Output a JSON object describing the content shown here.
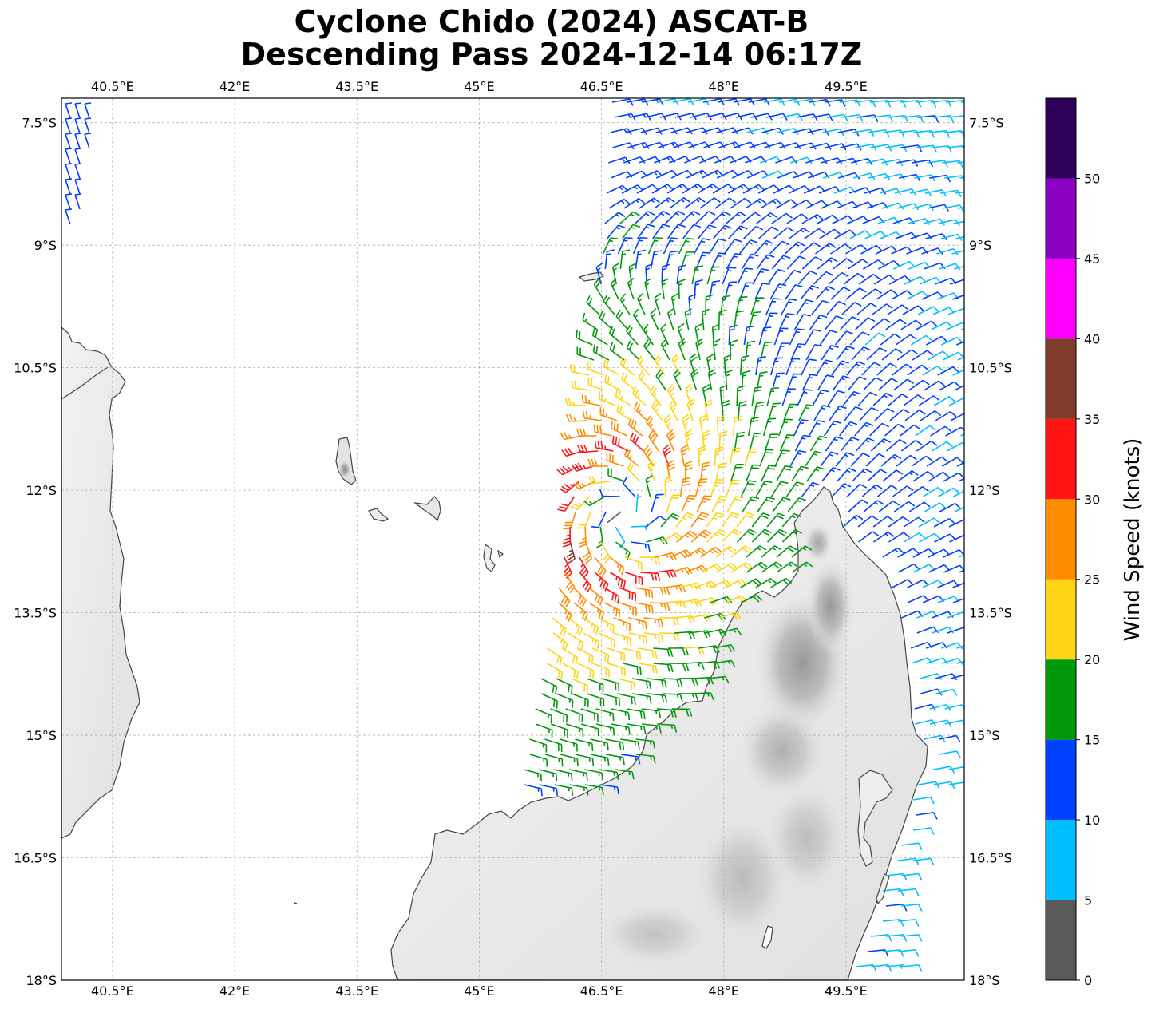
{
  "title": {
    "line1": "Cyclone Chido (2024) ASCAT-B",
    "line2": "Descending Pass 2024-12-14 06:17Z"
  },
  "map": {
    "lon_range": [
      39.875,
      50.95
    ],
    "lat_range": [
      -18.0,
      -7.2
    ],
    "lon_ticks": [
      {
        "value": 40.5,
        "label": "40.5°E"
      },
      {
        "value": 42.0,
        "label": "42°E"
      },
      {
        "value": 43.5,
        "label": "43.5°E"
      },
      {
        "value": 45.0,
        "label": "45°E"
      },
      {
        "value": 46.5,
        "label": "46.5°E"
      },
      {
        "value": 48.0,
        "label": "48°E"
      },
      {
        "value": 49.5,
        "label": "49.5°E"
      }
    ],
    "lat_ticks": [
      {
        "value": -7.5,
        "label": "7.5°S"
      },
      {
        "value": -9.0,
        "label": "9°S"
      },
      {
        "value": -10.5,
        "label": "10.5°S"
      },
      {
        "value": -12.0,
        "label": "12°S"
      },
      {
        "value": -13.5,
        "label": "13.5°S"
      },
      {
        "value": -15.0,
        "label": "15°S"
      },
      {
        "value": -16.5,
        "label": "16.5°S"
      },
      {
        "value": -18.0,
        "label": "18°S"
      }
    ],
    "gridlines": true,
    "coastline_color": "#444444",
    "land_color": "#e6e6e6",
    "ocean_color": "#ffffff",
    "terrain": "grayscale elevation shading",
    "regions_shown": [
      "East Africa coast (Tanzania / Mozambique)",
      "Comoros islands",
      "Mayotte",
      "Glorioso / Aldabra",
      "Northern Madagascar"
    ]
  },
  "colorbar": {
    "label": "Wind Speed (knots)",
    "bins": [
      {
        "from": 0,
        "to": 5,
        "color": "#595959"
      },
      {
        "from": 5,
        "to": 10,
        "color": "#00bfff"
      },
      {
        "from": 10,
        "to": 15,
        "color": "#0040ff"
      },
      {
        "from": 15,
        "to": 20,
        "color": "#00990a"
      },
      {
        "from": 20,
        "to": 25,
        "color": "#ffd414"
      },
      {
        "from": 25,
        "to": 30,
        "color": "#ff8c00"
      },
      {
        "from": 30,
        "to": 35,
        "color": "#ff1414"
      },
      {
        "from": 35,
        "to": 40,
        "color": "#7f3c28"
      },
      {
        "from": 40,
        "to": 45,
        "color": "#ff00ff"
      },
      {
        "from": 45,
        "to": 50,
        "color": "#8a00bf"
      },
      {
        "from": 50,
        "to": 55,
        "color": "#2e0059"
      }
    ],
    "ticks": [
      {
        "value": 0,
        "label": "0"
      },
      {
        "value": 5,
        "label": "5"
      },
      {
        "value": 10,
        "label": "10"
      },
      {
        "value": 15,
        "label": "15"
      },
      {
        "value": 20,
        "label": "20"
      },
      {
        "value": 25,
        "label": "25"
      },
      {
        "value": 30,
        "label": "30"
      },
      {
        "value": 35,
        "label": "35"
      },
      {
        "value": 40,
        "label": "40"
      },
      {
        "value": 45,
        "label": "45"
      },
      {
        "value": 50,
        "label": "50"
      }
    ],
    "range": [
      0,
      55
    ]
  },
  "wind_field": {
    "center_lon": 46.8,
    "center_lat": -12.3,
    "rmw_deg": 0.75,
    "vmax_kt": 33,
    "swath": "descending ASCAT-B pass over Comoros Basin / northern Madagascar"
  }
}
